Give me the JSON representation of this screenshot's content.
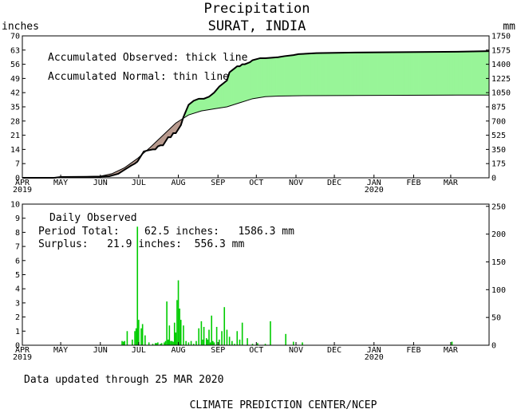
{
  "chart_data": [
    {
      "type": "area",
      "title": "Precipitation",
      "subtitle": "SURAT, INDIA",
      "left_unit": "inches",
      "right_unit": "mm",
      "ylim": [
        0,
        70
      ],
      "y_ticks": [
        0,
        7,
        14,
        21,
        28,
        35,
        42,
        49,
        56,
        63,
        70
      ],
      "y_right_ticks": [
        "0",
        "175",
        "350",
        "525",
        "700",
        "875",
        "1050",
        "1225",
        "1400",
        "1575",
        "1750"
      ],
      "x_labels": [
        {
          "label": "APR",
          "year": "2019",
          "day": 0
        },
        {
          "label": "MAY",
          "year": "",
          "day": 30
        },
        {
          "label": "JUN",
          "year": "",
          "day": 61
        },
        {
          "label": "JUL",
          "year": "",
          "day": 91
        },
        {
          "label": "AUG",
          "year": "",
          "day": 122
        },
        {
          "label": "SEP",
          "year": "",
          "day": 153
        },
        {
          "label": "OCT",
          "year": "",
          "day": 183
        },
        {
          "label": "NOV",
          "year": "",
          "day": 214
        },
        {
          "label": "DEC",
          "year": "",
          "day": 244
        },
        {
          "label": "JAN",
          "year": "2020",
          "day": 275
        },
        {
          "label": "FEB",
          "year": "",
          "day": 306
        },
        {
          "label": "MAR",
          "year": "",
          "day": 335
        }
      ],
      "x_range_days": [
        0,
        365
      ],
      "annotations": [
        "Accumulated Observed: thick line",
        "Accumulated Normal: thin line"
      ],
      "fill_colors": {
        "surplus": "#98f598",
        "deficit": "#b89a8e"
      },
      "series": [
        {
          "style": "thick",
          "x": [
            0,
            25,
            30,
            50,
            61,
            68,
            75,
            80,
            85,
            88,
            90,
            92,
            94,
            95,
            98,
            102,
            104,
            106,
            108,
            110,
            112,
            114,
            116,
            118,
            120,
            122,
            124,
            126,
            128,
            130,
            134,
            138,
            142,
            146,
            148,
            150,
            154,
            158,
            160,
            162,
            166,
            168,
            170,
            172,
            174,
            178,
            180,
            186,
            190,
            200,
            205,
            212,
            216,
            230,
            260,
            300,
            340,
            365
          ],
          "y": [
            0,
            0,
            0.4,
            0.5,
            0.6,
            0.8,
            2,
            4,
            6,
            7,
            8,
            10,
            12,
            13,
            13.5,
            14,
            14,
            15.5,
            16,
            16,
            18,
            20,
            20,
            22,
            22,
            24,
            26,
            30,
            33,
            36,
            38,
            39,
            39,
            40,
            41,
            42,
            45,
            47,
            48,
            52,
            54,
            55,
            55,
            56,
            56,
            57,
            58,
            59,
            59,
            59.5,
            60,
            60.5,
            61,
            61.5,
            61.8,
            62,
            62.2,
            62.5
          ]
        },
        {
          "style": "thin",
          "x": [
            0,
            30,
            61,
            70,
            80,
            90,
            100,
            110,
            120,
            130,
            140,
            150,
            160,
            170,
            180,
            190,
            200,
            220,
            260,
            300,
            340,
            365
          ],
          "y": [
            0,
            0.2,
            0.8,
            2,
            5,
            9.5,
            15,
            21,
            27,
            31,
            33,
            34,
            35,
            37,
            39,
            40,
            40.3,
            40.5,
            40.6,
            40.7,
            40.8,
            40.8
          ]
        }
      ]
    },
    {
      "type": "bar",
      "ylim": [
        0,
        10
      ],
      "y_ticks": [
        0,
        1,
        2,
        3,
        4,
        5,
        6,
        7,
        8,
        9,
        10
      ],
      "y_right_ticks": [
        "0",
        "50",
        "100",
        "150",
        "200",
        "250"
      ],
      "x_range_days": [
        0,
        365
      ],
      "bar_color": "#00cc00",
      "annotations": [
        "Daily Observed",
        "Period Total:    62.5 inches:   1586.3 mm",
        "Surplus:   21.9 inches:  556.3 mm"
      ],
      "days": [
        78,
        79,
        80,
        82,
        86,
        88,
        89,
        90,
        91,
        93,
        94,
        96,
        99,
        102,
        104,
        105,
        106,
        108,
        109,
        111,
        112,
        113,
        114,
        115,
        116,
        117,
        118,
        119,
        120,
        121,
        122,
        123,
        124,
        126,
        128,
        130,
        132,
        134,
        136,
        138,
        140,
        141,
        142,
        144,
        145,
        146,
        147,
        148,
        149,
        150,
        152,
        154,
        156,
        158,
        160,
        162,
        164,
        166,
        168,
        170,
        172,
        176,
        180,
        184,
        190,
        194,
        206,
        212,
        219,
        336
      ],
      "values": [
        0.3,
        0.25,
        0.3,
        1.0,
        0.4,
        1.0,
        1.2,
        8.4,
        1.8,
        1.2,
        1.5,
        0.7,
        0.2,
        0.1,
        0.15,
        0.15,
        0.2,
        0.1,
        0.15,
        0.2,
        0.3,
        3.1,
        0.4,
        1.4,
        0.3,
        0.3,
        0.25,
        1.6,
        0.9,
        3.2,
        4.6,
        2.6,
        1.8,
        1.4,
        0.3,
        0.2,
        0.3,
        0.1,
        0.3,
        1.2,
        1.7,
        0.4,
        1.3,
        0.5,
        0.4,
        1.1,
        0.2,
        2.1,
        0.3,
        0.2,
        1.3,
        0.4,
        1.0,
        2.7,
        1.1,
        0.6,
        0.3,
        0.1,
        1.0,
        0.4,
        1.6,
        0.5,
        0.1,
        0.15,
        0.1,
        1.7,
        0.8,
        0.25,
        0.2,
        0.25
      ]
    }
  ],
  "footer": {
    "updated": "Data updated through 25 MAR 2020",
    "credit": "CLIMATE PREDICTION CENTER/NCEP"
  }
}
